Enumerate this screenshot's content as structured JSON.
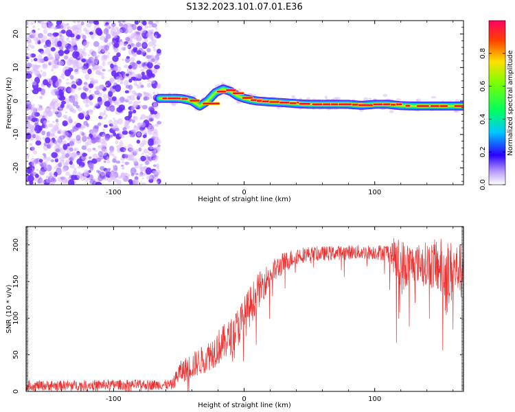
{
  "title": "S132.2023.101.07.01.E36",
  "colors": {
    "snr_line": "#ee3030",
    "spectral_dot": "#6a2cff",
    "spectral_dot_light": "#d9b8ff",
    "axis": "#000000"
  },
  "chart_data": [
    {
      "type": "heatmap",
      "title": "",
      "xlabel": "Height of straight line (km)",
      "ylabel": "Frequency (Hz)",
      "xlim": [
        -167,
        168
      ],
      "ylim": [
        -25,
        24
      ],
      "x_ticks": [
        -100,
        0,
        100
      ],
      "y_ticks": [
        -20,
        -10,
        0,
        10,
        20
      ],
      "colorbar": {
        "label": "Normalized spectral amplitude",
        "range": [
          0.0,
          1.0
        ],
        "ticks": [
          0.0,
          0.2,
          0.4,
          0.6,
          0.8
        ]
      },
      "noise_region": {
        "x_range": [
          -167,
          -65
        ],
        "description": "broadband low-amplitude noise"
      },
      "ridge": {
        "x": [
          -65,
          -55,
          -48,
          -40,
          -34,
          -28,
          -22,
          -16,
          -10,
          -5,
          0,
          5,
          10,
          20,
          30,
          40,
          50,
          60,
          70,
          80,
          90,
          100,
          110,
          120,
          130,
          140,
          150,
          160,
          168
        ],
        "y": [
          0.8,
          0.8,
          0.7,
          0.0,
          -1.5,
          0.0,
          2.5,
          3.6,
          2.8,
          1.5,
          0.8,
          0.3,
          0.0,
          -0.3,
          -0.5,
          -0.8,
          -1.0,
          -1.0,
          -1.0,
          -1.0,
          -1.3,
          -1.0,
          -1.0,
          -1.4,
          -1.5,
          -1.5,
          -1.5,
          -1.5,
          -1.5
        ]
      }
    },
    {
      "type": "line",
      "title": "",
      "xlabel": "Height of straight line (km)",
      "ylabel": "SNR (10 * v/v)",
      "xlim": [
        -167,
        168
      ],
      "ylim": [
        0,
        225
      ],
      "x_ticks": [
        -100,
        0,
        100
      ],
      "y_ticks": [
        0,
        50,
        100,
        150,
        200
      ],
      "envelope": {
        "x": [
          -167,
          -140,
          -110,
          -80,
          -55,
          -50,
          -40,
          -30,
          -20,
          -10,
          0,
          10,
          20,
          30,
          40,
          50,
          60,
          80,
          100,
          110,
          115,
          120,
          130,
          140,
          150,
          155,
          160,
          168
        ],
        "mean": [
          8,
          8,
          9,
          9,
          9,
          25,
          35,
          45,
          60,
          75,
          100,
          135,
          160,
          175,
          185,
          188,
          188,
          190,
          190,
          190,
          185,
          170,
          175,
          175,
          170,
          155,
          165,
          170
        ],
        "spread": [
          7,
          7,
          7,
          7,
          7,
          15,
          18,
          20,
          25,
          25,
          30,
          25,
          18,
          15,
          12,
          10,
          10,
          10,
          10,
          12,
          25,
          40,
          25,
          30,
          40,
          55,
          40,
          30
        ]
      }
    }
  ]
}
